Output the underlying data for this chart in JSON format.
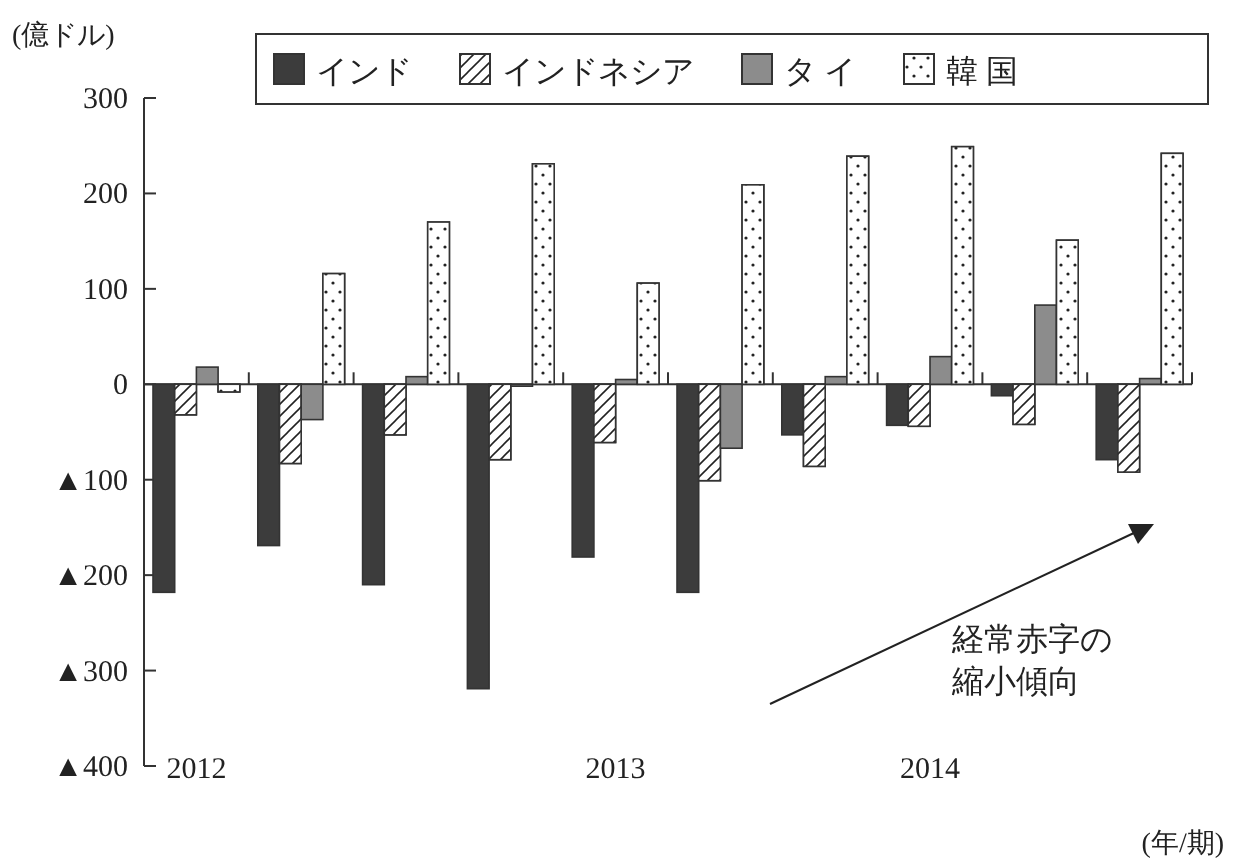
{
  "chart_data": {
    "type": "bar",
    "categories": [
      "2012",
      null,
      null,
      null,
      "2013",
      null,
      null,
      "2014",
      null,
      null
    ],
    "series": [
      {
        "name": "インド",
        "color": "#3c3c3c",
        "values": [
          -218,
          -169,
          -210,
          -319,
          -181,
          -218,
          -53,
          -43,
          -12,
          -79
        ]
      },
      {
        "name": "インドネシア",
        "color": "#ffffff",
        "values": [
          -32,
          -83,
          -53,
          -79,
          -61,
          -101,
          -86,
          -44,
          -42,
          -92
        ]
      },
      {
        "name": "タ イ",
        "color": "#8c8c8c",
        "values": [
          18,
          -37,
          8,
          -2,
          5,
          -67,
          8,
          29,
          83,
          6
        ]
      },
      {
        "name": "韓 国",
        "color": "#ffffff",
        "values": [
          -8,
          116,
          170,
          231,
          106,
          209,
          239,
          249,
          151,
          242
        ]
      }
    ],
    "ylim": [
      -400,
      300
    ],
    "yticks": [
      300,
      200,
      100,
      0,
      {
        "value": -100,
        "label": "▲100"
      },
      {
        "value": -200,
        "label": "▲200"
      },
      {
        "value": -300,
        "label": "▲300"
      },
      {
        "value": -400,
        "label": "▲400"
      }
    ],
    "ylabel": "(億ドル)",
    "xlabel": "(年/期)",
    "legend": "top",
    "annotations": [
      "経常赤字の",
      "縮小傾向"
    ]
  }
}
